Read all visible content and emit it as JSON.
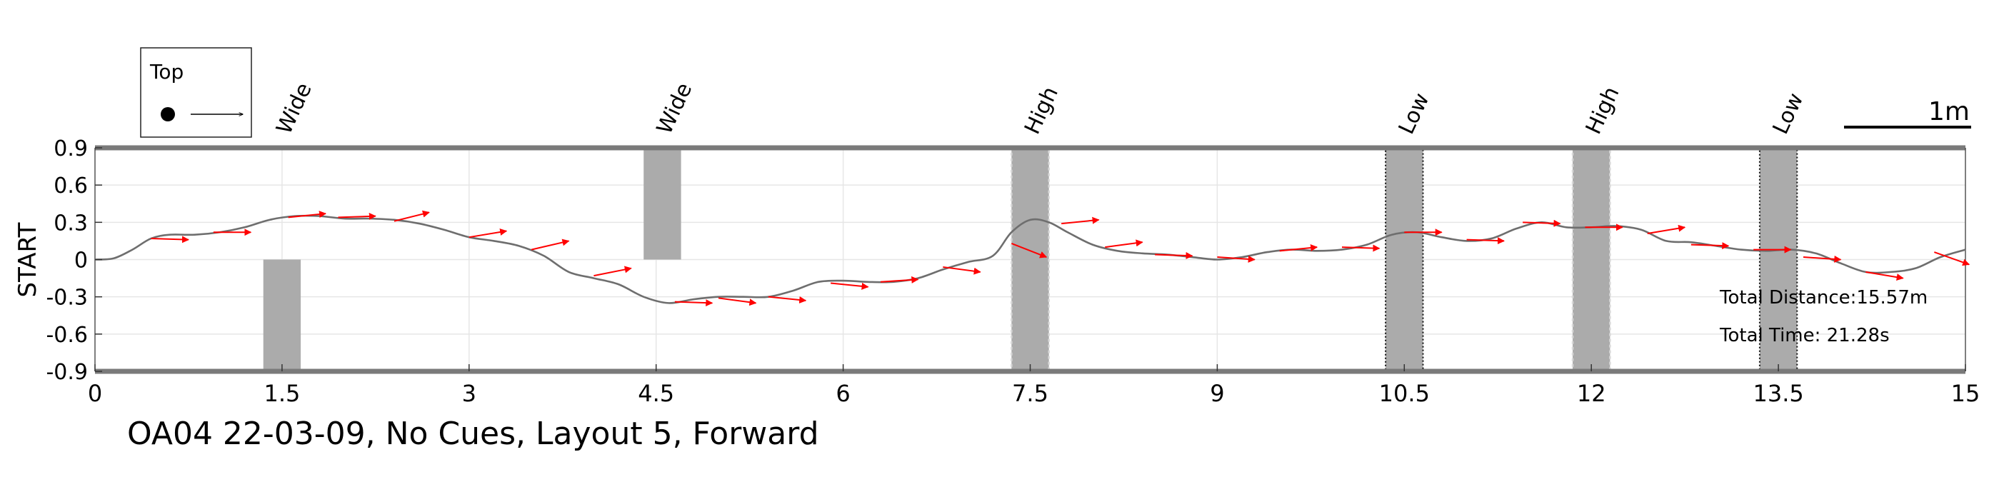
{
  "chart_data": {
    "type": "line",
    "title": "",
    "caption": "OA04 22-03-09, No Cues, Layout 5, Forward",
    "xlabel": "",
    "ylabel": "START",
    "xlim": [
      0,
      15
    ],
    "ylim": [
      -0.9,
      0.9
    ],
    "xticks": [
      "0",
      "1.5",
      "3",
      "4.5",
      "6",
      "7.5",
      "9",
      "10.5",
      "12",
      "13.5",
      "15"
    ],
    "yticks": [
      "0.9",
      "0.6",
      "0.3",
      "0",
      "-0.3",
      "-0.6",
      "-0.9"
    ],
    "grid": true,
    "legend": {
      "position": "top-left",
      "label": "Top"
    },
    "scale_bar": {
      "label": "1m",
      "length": 1.0
    },
    "obstacles": [
      {
        "label": "Wide",
        "x0": 1.35,
        "x1": 1.65,
        "y0": -0.9,
        "y1": 0,
        "outline": false
      },
      {
        "label": "Wide",
        "x0": 4.4,
        "x1": 4.7,
        "y0": 0,
        "y1": 0.9,
        "outline": false
      },
      {
        "label": "High",
        "x0": 7.35,
        "x1": 7.65,
        "y0": -0.9,
        "y1": 0.9,
        "outline": "dotted-light"
      },
      {
        "label": "Low",
        "x0": 10.35,
        "x1": 10.65,
        "y0": -0.9,
        "y1": 0.9,
        "outline": "dotted-dark"
      },
      {
        "label": "High",
        "x0": 11.85,
        "x1": 12.15,
        "y0": -0.9,
        "y1": 0.9,
        "outline": "dotted-light"
      },
      {
        "label": "Low",
        "x0": 13.35,
        "x1": 13.65,
        "y0": -0.9,
        "y1": 0.9,
        "outline": "dotted-dark"
      }
    ],
    "series": [
      {
        "x": [
          0,
          0.15,
          0.3,
          0.45,
          0.6,
          0.8,
          1.0,
          1.2,
          1.4,
          1.6,
          1.8,
          2.0,
          2.2,
          2.4,
          2.6,
          2.8,
          3.0,
          3.2,
          3.4,
          3.6,
          3.8,
          4.0,
          4.2,
          4.4,
          4.6,
          4.8,
          5.0,
          5.2,
          5.4,
          5.6,
          5.8,
          6.0,
          6.2,
          6.4,
          6.6,
          6.8,
          7.0,
          7.2,
          7.35,
          7.5,
          7.65,
          7.8,
          8.0,
          8.2,
          8.4,
          8.6,
          8.8,
          9.0,
          9.2,
          9.4,
          9.6,
          9.8,
          10.0,
          10.2,
          10.4,
          10.6,
          10.8,
          11.0,
          11.2,
          11.4,
          11.6,
          11.8,
          12.0,
          12.2,
          12.4,
          12.6,
          12.8,
          13.0,
          13.2,
          13.4,
          13.6,
          13.8,
          14.0,
          14.2,
          14.4,
          14.6,
          14.8,
          15.0
        ],
        "y": [
          0.0,
          0.01,
          0.08,
          0.17,
          0.2,
          0.2,
          0.22,
          0.26,
          0.32,
          0.35,
          0.35,
          0.33,
          0.33,
          0.32,
          0.29,
          0.24,
          0.18,
          0.15,
          0.11,
          0.03,
          -0.1,
          -0.15,
          -0.2,
          -0.3,
          -0.35,
          -0.32,
          -0.3,
          -0.3,
          -0.3,
          -0.25,
          -0.18,
          -0.17,
          -0.18,
          -0.18,
          -0.15,
          -0.08,
          -0.02,
          0.03,
          0.22,
          0.32,
          0.3,
          0.22,
          0.12,
          0.07,
          0.05,
          0.04,
          0.02,
          0.0,
          0.02,
          0.06,
          0.08,
          0.07,
          0.08,
          0.12,
          0.2,
          0.22,
          0.18,
          0.15,
          0.17,
          0.25,
          0.3,
          0.26,
          0.26,
          0.27,
          0.24,
          0.15,
          0.14,
          0.11,
          0.08,
          0.07,
          0.08,
          0.05,
          -0.03,
          -0.1,
          -0.1,
          -0.07,
          0.02,
          0.08
        ]
      }
    ],
    "heading_arrows": [
      {
        "x": 0.45,
        "y": 0.17,
        "dx": 0.3,
        "dy": -0.01
      },
      {
        "x": 0.95,
        "y": 0.22,
        "dx": 0.3,
        "dy": 0.0
      },
      {
        "x": 1.55,
        "y": 0.34,
        "dx": 0.3,
        "dy": 0.03
      },
      {
        "x": 1.95,
        "y": 0.34,
        "dx": 0.3,
        "dy": 0.01
      },
      {
        "x": 2.4,
        "y": 0.31,
        "dx": 0.28,
        "dy": 0.07
      },
      {
        "x": 3.0,
        "y": 0.18,
        "dx": 0.3,
        "dy": 0.05
      },
      {
        "x": 3.5,
        "y": 0.08,
        "dx": 0.3,
        "dy": 0.07
      },
      {
        "x": 4.0,
        "y": -0.13,
        "dx": 0.3,
        "dy": 0.06
      },
      {
        "x": 4.65,
        "y": -0.34,
        "dx": 0.3,
        "dy": -0.01
      },
      {
        "x": 5.0,
        "y": -0.31,
        "dx": 0.3,
        "dy": -0.04
      },
      {
        "x": 5.4,
        "y": -0.3,
        "dx": 0.3,
        "dy": -0.03
      },
      {
        "x": 5.9,
        "y": -0.19,
        "dx": 0.3,
        "dy": -0.03
      },
      {
        "x": 6.3,
        "y": -0.18,
        "dx": 0.3,
        "dy": 0.02
      },
      {
        "x": 6.8,
        "y": -0.06,
        "dx": 0.3,
        "dy": -0.04
      },
      {
        "x": 7.35,
        "y": 0.13,
        "dx": 0.28,
        "dy": -0.11
      },
      {
        "x": 7.75,
        "y": 0.29,
        "dx": 0.3,
        "dy": 0.03
      },
      {
        "x": 8.1,
        "y": 0.1,
        "dx": 0.3,
        "dy": 0.04
      },
      {
        "x": 8.5,
        "y": 0.04,
        "dx": 0.3,
        "dy": -0.01
      },
      {
        "x": 9.0,
        "y": 0.02,
        "dx": 0.3,
        "dy": -0.02
      },
      {
        "x": 9.5,
        "y": 0.07,
        "dx": 0.3,
        "dy": 0.03
      },
      {
        "x": 10.0,
        "y": 0.1,
        "dx": 0.3,
        "dy": -0.01
      },
      {
        "x": 10.5,
        "y": 0.22,
        "dx": 0.3,
        "dy": 0.0
      },
      {
        "x": 11.0,
        "y": 0.16,
        "dx": 0.3,
        "dy": -0.01
      },
      {
        "x": 11.45,
        "y": 0.3,
        "dx": 0.3,
        "dy": -0.01
      },
      {
        "x": 11.95,
        "y": 0.26,
        "dx": 0.3,
        "dy": 0.0
      },
      {
        "x": 12.45,
        "y": 0.21,
        "dx": 0.3,
        "dy": 0.05
      },
      {
        "x": 12.8,
        "y": 0.12,
        "dx": 0.3,
        "dy": -0.01
      },
      {
        "x": 13.3,
        "y": 0.08,
        "dx": 0.3,
        "dy": 0.0
      },
      {
        "x": 13.7,
        "y": 0.02,
        "dx": 0.3,
        "dy": -0.02
      },
      {
        "x": 14.2,
        "y": -0.1,
        "dx": 0.3,
        "dy": -0.05
      },
      {
        "x": 14.75,
        "y": 0.06,
        "dx": 0.28,
        "dy": -0.1
      }
    ],
    "annotations": {
      "distance": "Total Distance:15.57m",
      "time": "Total Time: 21.28s"
    }
  }
}
